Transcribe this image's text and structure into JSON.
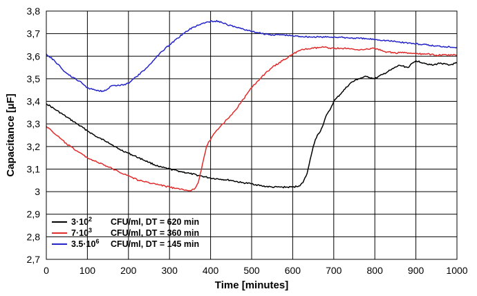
{
  "chart_data": {
    "type": "line",
    "title": "",
    "xlabel": "Time [minutes]",
    "ylabel": "Capacitance [µF]",
    "xlim": [
      0,
      1000
    ],
    "ylim": [
      2.7,
      3.8
    ],
    "xticks": [
      0,
      100,
      200,
      300,
      400,
      500,
      600,
      700,
      800,
      900,
      1000
    ],
    "xtick_labels": [
      "0",
      "100",
      "200",
      "300",
      "400",
      "500",
      "600",
      "700",
      "800",
      "900",
      "1000"
    ],
    "yticks": [
      2.7,
      2.8,
      2.9,
      3.0,
      3.1,
      3.2,
      3.3,
      3.4,
      3.5,
      3.6,
      3.7,
      3.8
    ],
    "ytick_labels": [
      "2,7",
      "2,8",
      "2,9",
      "3",
      "3,1",
      "3,2",
      "3,3",
      "3,4",
      "3,5",
      "3,6",
      "3,7",
      "3,8"
    ],
    "grid": true,
    "legend_position": "bottom-left",
    "series": [
      {
        "name": "3·10² CFU/ml, DT = 620 min",
        "legend_conc_base": "3·10",
        "legend_conc_exp": "2",
        "legend_detail": "CFU/ml, DT = 620 min",
        "color": "#000000",
        "x": [
          0,
          25,
          50,
          75,
          100,
          125,
          150,
          175,
          200,
          225,
          250,
          275,
          300,
          325,
          350,
          375,
          400,
          425,
          450,
          475,
          500,
          525,
          550,
          575,
          600,
          615,
          625,
          635,
          640,
          645,
          650,
          655,
          660,
          665,
          670,
          675,
          680,
          690,
          700,
          720,
          740,
          760,
          780,
          800,
          820,
          840,
          860,
          880,
          900,
          920,
          940,
          960,
          980,
          1000
        ],
        "y": [
          3.39,
          3.36,
          3.33,
          3.3,
          3.27,
          3.24,
          3.22,
          3.19,
          3.17,
          3.15,
          3.13,
          3.11,
          3.1,
          3.09,
          3.08,
          3.07,
          3.06,
          3.055,
          3.05,
          3.04,
          3.035,
          3.025,
          3.02,
          3.02,
          3.02,
          3.025,
          3.04,
          3.08,
          3.12,
          3.16,
          3.2,
          3.23,
          3.25,
          3.26,
          3.28,
          3.3,
          3.33,
          3.36,
          3.4,
          3.44,
          3.48,
          3.5,
          3.51,
          3.5,
          3.52,
          3.54,
          3.56,
          3.55,
          3.58,
          3.57,
          3.56,
          3.57,
          3.56,
          3.57
        ]
      },
      {
        "name": "7·10³ CFU/ml, DT = 360 min",
        "legend_conc_base": "7·10",
        "legend_conc_exp": "3",
        "legend_detail": "CFU/ml, DT = 360 min",
        "color": "#e02b2b",
        "x": [
          0,
          25,
          50,
          75,
          100,
          125,
          150,
          175,
          200,
          225,
          250,
          275,
          300,
          325,
          350,
          360,
          370,
          375,
          380,
          385,
          390,
          395,
          400,
          410,
          420,
          440,
          460,
          480,
          500,
          525,
          550,
          575,
          600,
          625,
          650,
          675,
          700,
          725,
          750,
          775,
          800,
          825,
          850,
          875,
          900,
          925,
          950,
          975,
          1000
        ],
        "y": [
          3.29,
          3.25,
          3.21,
          3.18,
          3.15,
          3.13,
          3.11,
          3.09,
          3.07,
          3.05,
          3.04,
          3.03,
          3.02,
          3.01,
          3.005,
          3.01,
          3.04,
          3.08,
          3.12,
          3.16,
          3.2,
          3.22,
          3.23,
          3.26,
          3.28,
          3.32,
          3.36,
          3.41,
          3.46,
          3.51,
          3.55,
          3.58,
          3.61,
          3.63,
          3.635,
          3.64,
          3.635,
          3.635,
          3.63,
          3.63,
          3.635,
          3.62,
          3.615,
          3.615,
          3.61,
          3.61,
          3.605,
          3.605,
          3.605
        ]
      },
      {
        "name": "3.5·10⁶ CFU/ml, DT = 145 min",
        "legend_conc_base": "3.5·10",
        "legend_conc_exp": "6",
        "legend_detail": "CFU/ml, DT = 145 min",
        "color": "#2323c8",
        "x": [
          0,
          20,
          40,
          60,
          80,
          100,
          120,
          140,
          160,
          180,
          200,
          220,
          240,
          260,
          280,
          300,
          320,
          340,
          360,
          380,
          400,
          420,
          440,
          460,
          480,
          500,
          525,
          550,
          575,
          600,
          650,
          700,
          750,
          800,
          850,
          900,
          950,
          1000
        ],
        "y": [
          3.61,
          3.58,
          3.54,
          3.51,
          3.49,
          3.46,
          3.45,
          3.445,
          3.47,
          3.47,
          3.48,
          3.51,
          3.54,
          3.58,
          3.62,
          3.65,
          3.68,
          3.71,
          3.73,
          3.745,
          3.755,
          3.755,
          3.74,
          3.73,
          3.72,
          3.71,
          3.7,
          3.695,
          3.695,
          3.69,
          3.685,
          3.685,
          3.68,
          3.675,
          3.665,
          3.655,
          3.645,
          3.64
        ]
      }
    ]
  }
}
